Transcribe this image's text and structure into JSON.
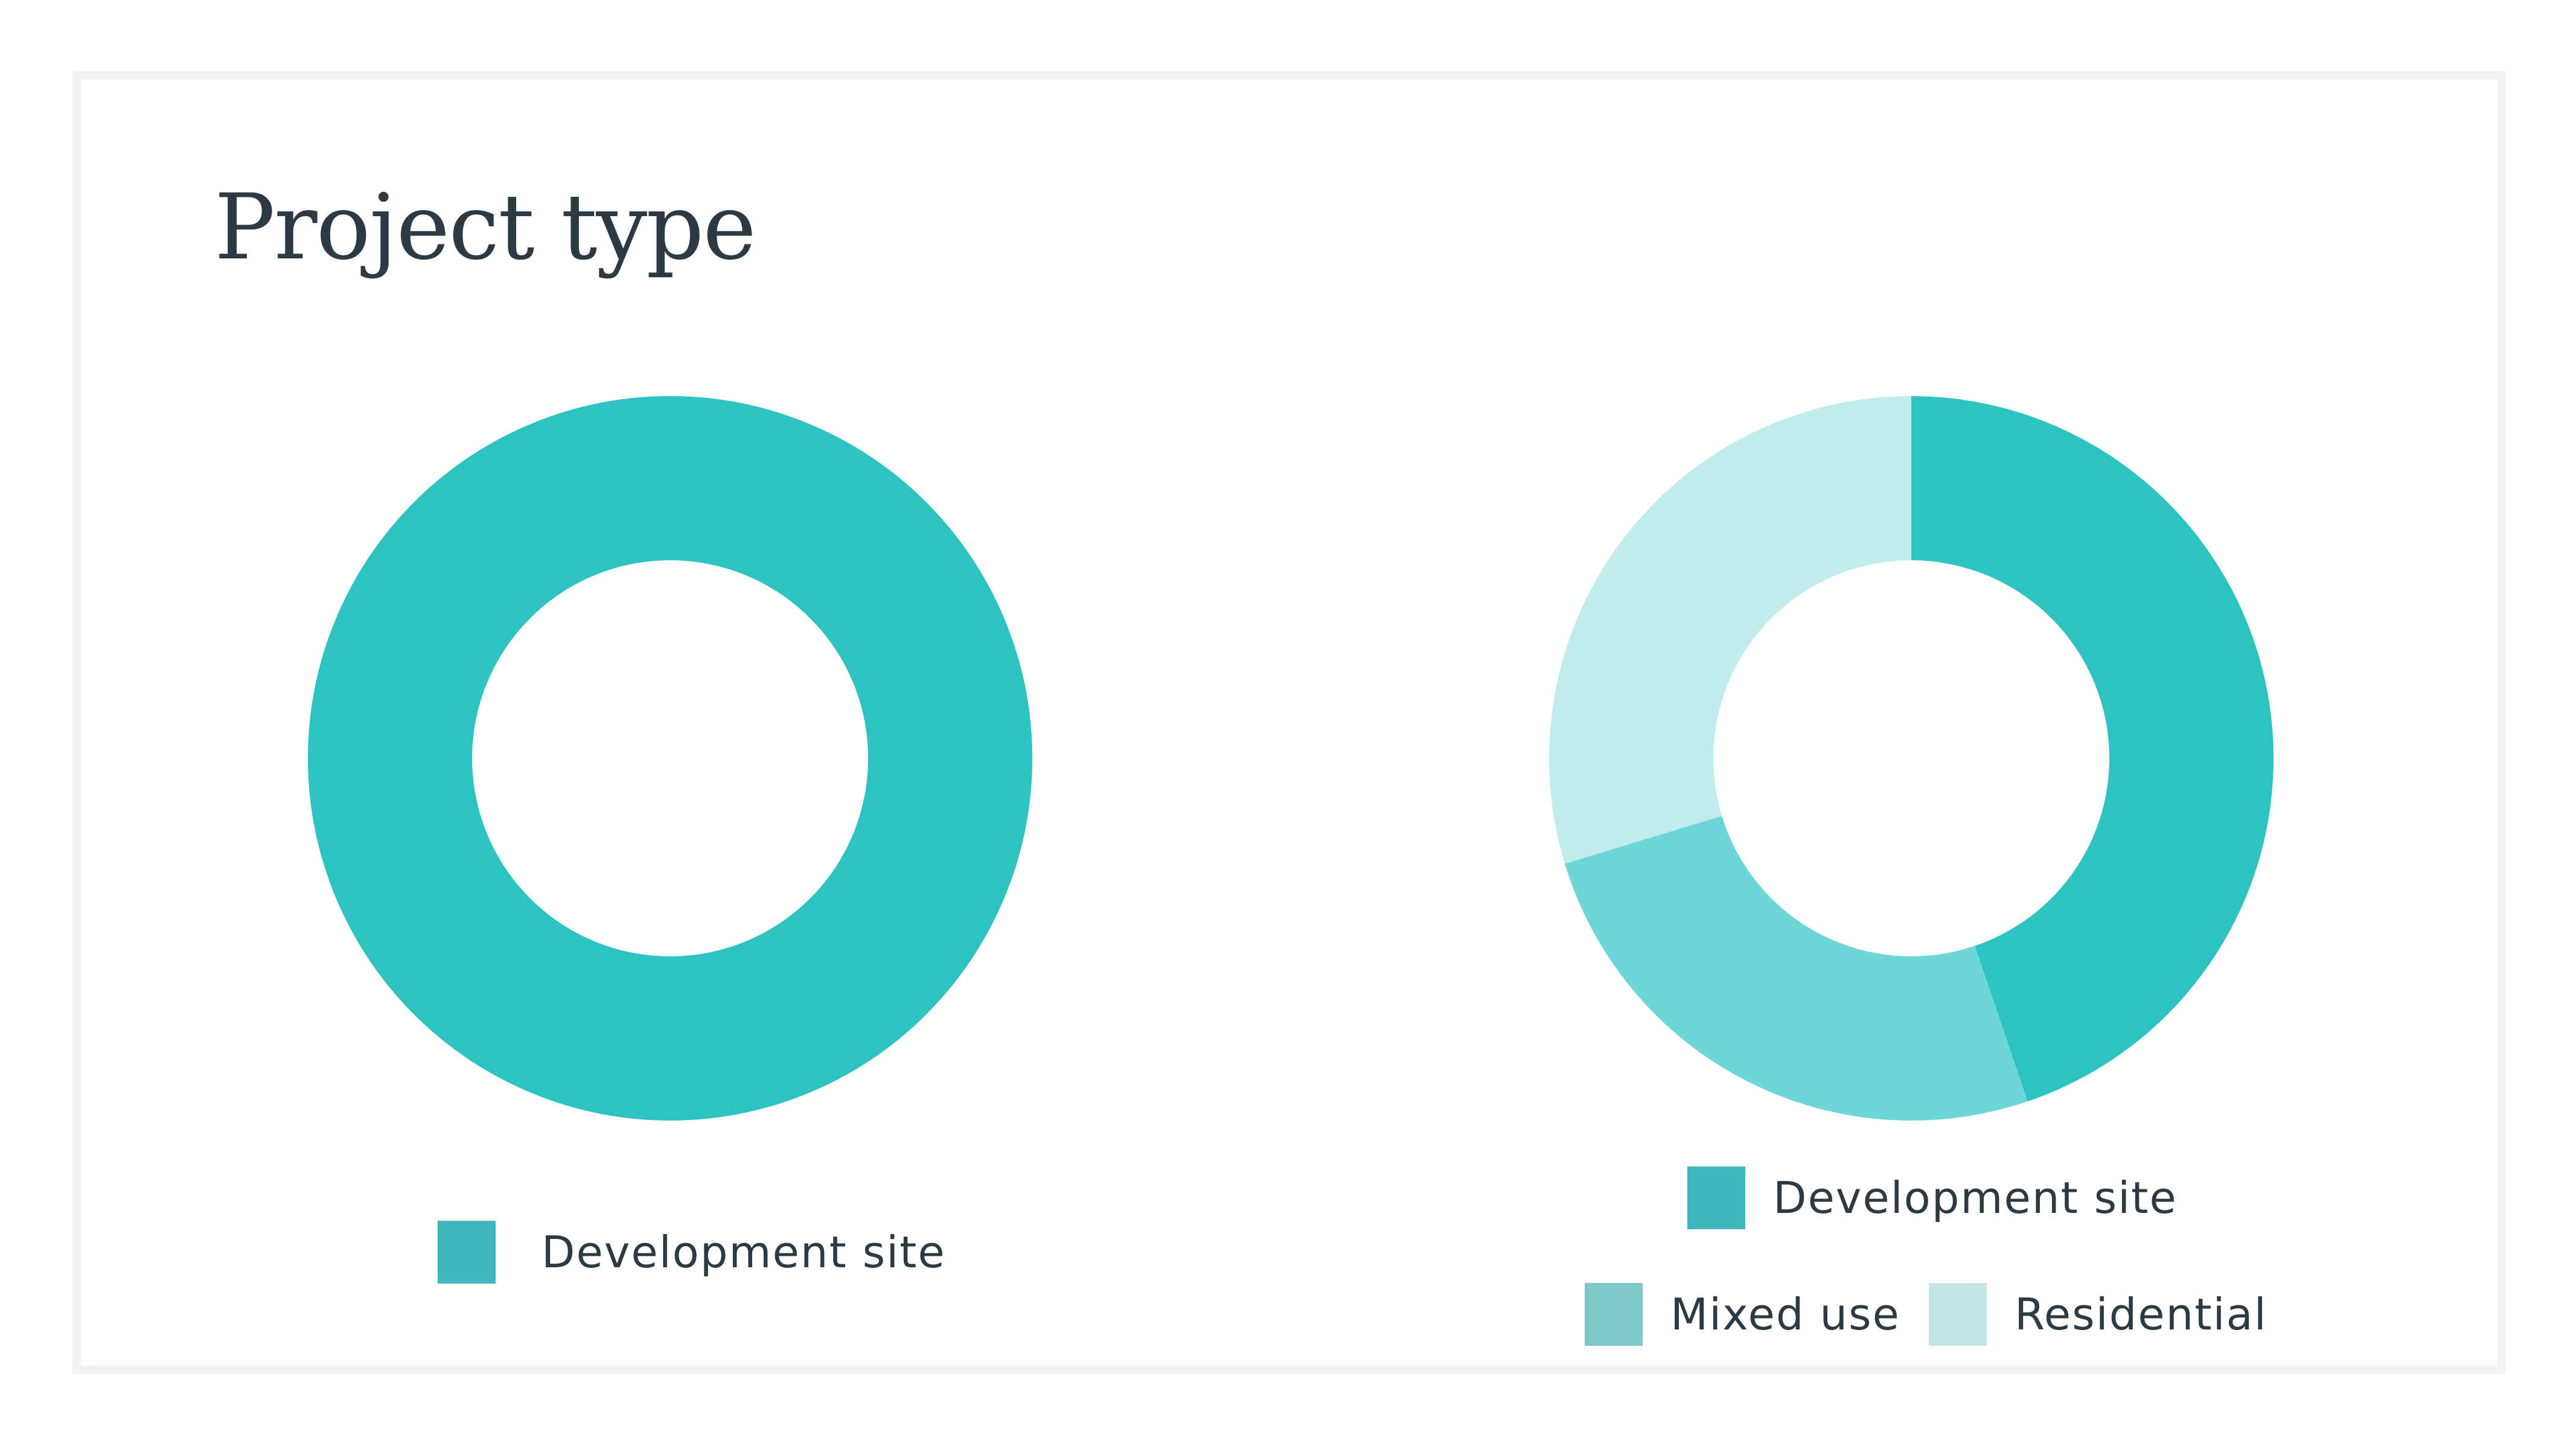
{
  "title": "Project type",
  "colors": {
    "development_site": "#2cc3c2",
    "mixed_use": "#6dd6d6",
    "residential": "#c1ecec",
    "legend_development_site": "#3fb7bb",
    "legend_mixed_use": "#7ec8cc",
    "legend_residential": "#c3e5e6"
  },
  "chart_data": [
    {
      "type": "pie",
      "donut": true,
      "categories": [
        "Development site"
      ],
      "values": [
        100
      ],
      "legend": [
        "Development site"
      ]
    },
    {
      "type": "pie",
      "donut": true,
      "categories": [
        "Development site",
        "Mixed use",
        "Residential"
      ],
      "values": [
        44.8,
        25.5,
        29.7
      ],
      "legend": [
        "Development site",
        "Mixed use",
        "Residential"
      ]
    }
  ]
}
